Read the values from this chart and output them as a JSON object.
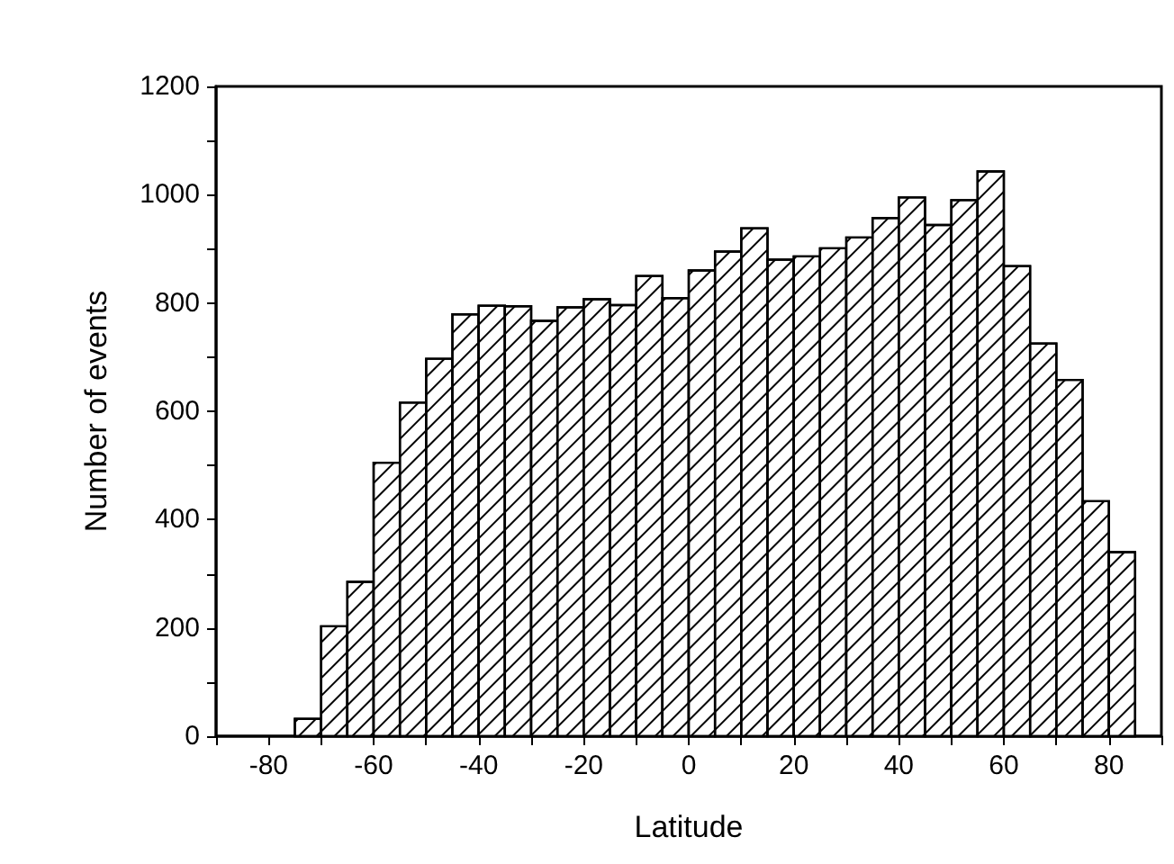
{
  "chart_data": {
    "type": "histogram",
    "xlabel": "Latitude",
    "ylabel": "Number of events",
    "bins": [
      -75,
      -70,
      -65,
      -60,
      -55,
      -50,
      -45,
      -40,
      -35,
      -30,
      -25,
      -20,
      -15,
      -10,
      -5,
      0,
      5,
      10,
      15,
      20,
      25,
      30,
      35,
      40,
      45,
      50,
      55,
      60,
      65,
      70,
      75,
      80,
      85
    ],
    "values": [
      32,
      203,
      285,
      505,
      616,
      697,
      779,
      795,
      794,
      767,
      792,
      807,
      796,
      850,
      809,
      860,
      895,
      938,
      880,
      886,
      901,
      921,
      957,
      995,
      944,
      990,
      1043,
      868,
      725,
      658,
      434,
      340
    ],
    "color": "#ffffff",
    "xlim": [
      -90,
      90
    ],
    "xticks": [
      {
        "value": -90,
        "label": null
      },
      -80,
      {
        "value": -70,
        "label": null
      },
      -60,
      {
        "value": -50,
        "label": null
      },
      -40,
      {
        "value": -30,
        "label": null
      },
      -20,
      {
        "value": -10,
        "label": null
      },
      0,
      {
        "value": 10,
        "label": null
      },
      20,
      {
        "value": 30,
        "label": null
      },
      40,
      {
        "value": 50,
        "label": null
      },
      60,
      {
        "value": 70,
        "label": null
      },
      80,
      {
        "value": 90,
        "label": null
      }
    ],
    "ylim": [
      0,
      1200
    ],
    "yticks": [
      0,
      {
        "value": 100,
        "label": null
      },
      200,
      {
        "value": 300,
        "label": null
      },
      400,
      {
        "value": 500,
        "label": null
      },
      600,
      {
        "value": 700,
        "label": null
      },
      800,
      {
        "value": 900,
        "label": null
      },
      1000,
      {
        "value": 1100,
        "label": null
      },
      1200
    ],
    "grid": false
  }
}
